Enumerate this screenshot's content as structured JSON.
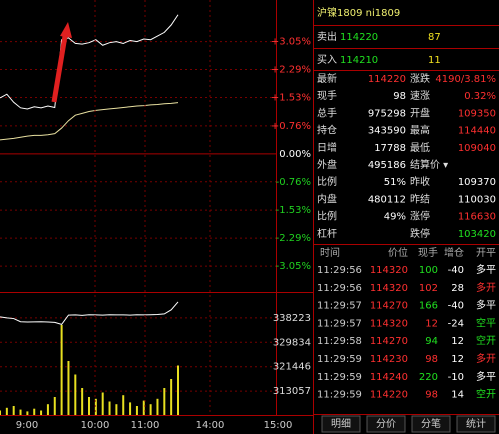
{
  "price_chart": {
    "ylim": [
      -3.7,
      4.18
    ],
    "yticks": [
      {
        "value": 3.05,
        "label": "+3.05%"
      },
      {
        "value": 2.29,
        "label": "+2.29%"
      },
      {
        "value": 1.53,
        "label": "+1.53%"
      },
      {
        "value": 0.76,
        "label": "+0.76%"
      },
      {
        "value": 0,
        "label": "0.00%"
      },
      {
        "value": -0.76,
        "label": "-0.76%"
      },
      {
        "value": -1.53,
        "label": "-1.53%"
      },
      {
        "value": -2.29,
        "label": "-2.29%"
      },
      {
        "value": -3.05,
        "label": "-3.05%"
      }
    ],
    "price": [
      1.52,
      1.62,
      1.4,
      1.25,
      1.22,
      1.28,
      1.25,
      1.3,
      1.26,
      3.1,
      3.15,
      3.0,
      2.98,
      3.02,
      3.1,
      2.95,
      3.02,
      3.05,
      3.0,
      3.08,
      3.05,
      3.12,
      3.1,
      3.2,
      3.3,
      3.5,
      3.78
    ],
    "average": [
      0.38,
      0.4,
      0.42,
      0.45,
      0.48,
      0.5,
      0.5,
      0.52,
      0.55,
      0.7,
      0.9,
      1.05,
      1.1,
      1.15,
      1.18,
      1.2,
      1.22,
      1.24,
      1.26,
      1.28,
      1.3,
      1.31,
      1.33,
      1.34,
      1.36,
      1.37,
      1.39
    ]
  },
  "volume_chart": {
    "ylim": [
      304840,
      346100
    ],
    "yticks": [
      338223,
      329834,
      321446,
      313057
    ],
    "open_interest": [
      338600,
      338223,
      338000,
      336900,
      336800,
      336853,
      336900,
      336800,
      336700,
      336000,
      339200,
      339250,
      339100,
      339300,
      339250,
      339200,
      339300,
      339250,
      339250,
      339200,
      339300,
      339250,
      339300,
      339400,
      339600,
      341000,
      343700
    ],
    "volume": [
      5,
      8,
      10,
      6,
      4,
      7,
      5,
      12,
      20,
      100,
      60,
      45,
      30,
      20,
      18,
      25,
      15,
      12,
      22,
      14,
      10,
      16,
      12,
      18,
      30,
      40,
      55
    ]
  },
  "time_labels": [
    "9:00",
    "10:00",
    "11:00",
    "14:00",
    "15:00"
  ],
  "quote": {
    "title": "沪镍1809  ni1809",
    "ask": [
      "卖出",
      "114220",
      "87"
    ],
    "bid": [
      "买入",
      "114210",
      "11"
    ],
    "stats": [
      [
        "最新",
        "114220",
        "涨跌",
        "4190/3.81%"
      ],
      [
        "现手",
        "98",
        "速涨",
        "0.32%"
      ],
      [
        "总手",
        "975298",
        "开盘",
        "109350"
      ],
      [
        "持仓",
        "343590",
        "最高",
        "114440"
      ],
      [
        "日增",
        "17788",
        "最低",
        "109040"
      ],
      [
        "外盘",
        "495186",
        "结算价 ▾",
        ""
      ],
      [
        "比例",
        "51%",
        "昨收",
        "109370"
      ],
      [
        "内盘",
        "480112",
        "昨结",
        "110030"
      ],
      [
        "比例",
        "49%",
        "涨停",
        "116630"
      ],
      [
        "杠杆",
        "",
        "跌停",
        "103420"
      ]
    ]
  },
  "trades": {
    "header": [
      "时间",
      "价位",
      "现手",
      "增仓",
      "开平"
    ],
    "rows": [
      [
        "11:29:56",
        "114320",
        "100",
        "-40",
        "多平"
      ],
      [
        "11:29:56",
        "114320",
        "102",
        "28",
        "多开"
      ],
      [
        "11:29:57",
        "114270",
        "166",
        "-40",
        "多平"
      ],
      [
        "11:29:57",
        "114320",
        "12",
        "-24",
        "空平"
      ],
      [
        "11:29:58",
        "114270",
        "94",
        "12",
        "空开"
      ],
      [
        "11:29:59",
        "114230",
        "98",
        "12",
        "多开"
      ],
      [
        "11:29:59",
        "114240",
        "220",
        "-10",
        "多平"
      ],
      [
        "11:29:59",
        "114220",
        "98",
        "14",
        "空开"
      ]
    ]
  },
  "tabs": [
    "明细",
    "分价",
    "分笔",
    "统计"
  ]
}
